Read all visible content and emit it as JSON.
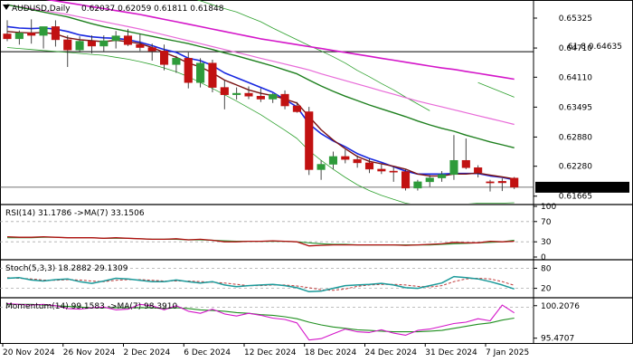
{
  "header": {
    "symbol_text": "AUDUSD,Daily",
    "ohlc_text": "0.62037 0.62059 0.61811 0.61848"
  },
  "colors": {
    "bull": "#2e9b3a",
    "bear": "#c11111",
    "blue_ma": "#1727e0",
    "red_ma": "#7a1212",
    "green_ma": "#1d7f1d",
    "magenta_ma": "#d416c9",
    "pink_ma": "#e86ad8",
    "band": "#2ca02c",
    "rsi_red": "#b01010",
    "rsi_green": "#2e9b3a",
    "stoch_teal": "#1b9a9a",
    "stoch_dash": "#c03a3a",
    "mom_green": "#1f8f1f",
    "mom_magenta": "#d416c9"
  },
  "chart_data": [
    {
      "type": "candlestick",
      "name": "AUDUSD,Daily",
      "x_labels": [
        "20 Nov 2024",
        "26 Nov 2024",
        "2 Dec 2024",
        "6 Dec 2024",
        "12 Dec 2024",
        "18 Dec 2024",
        "24 Dec 2024",
        "31 Dec 2024",
        "7 Jan 2025"
      ],
      "x_label_candle_index": [
        0,
        5,
        10,
        15,
        20,
        25,
        30,
        35,
        40
      ],
      "y_ticks": [
        0.65325,
        0.6471,
        0.6411,
        0.63495,
        0.6288,
        0.6228,
        0.61665
      ],
      "ylim": [
        0.6153,
        0.6566
      ],
      "last_price_label": "0.61848",
      "last_price": 0.61848,
      "fib_level": {
        "label": "61.8 0.64635",
        "value": 0.64635
      },
      "candles": [
        {
          "o": 0.65,
          "h": 0.6528,
          "l": 0.6485,
          "c": 0.649
        },
        {
          "o": 0.649,
          "h": 0.6507,
          "l": 0.6478,
          "c": 0.6502
        },
        {
          "o": 0.6502,
          "h": 0.653,
          "l": 0.648,
          "c": 0.6497
        },
        {
          "o": 0.6497,
          "h": 0.6513,
          "l": 0.647,
          "c": 0.6515
        },
        {
          "o": 0.6515,
          "h": 0.6528,
          "l": 0.6474,
          "c": 0.6488
        },
        {
          "o": 0.6488,
          "h": 0.6497,
          "l": 0.6432,
          "c": 0.6467
        },
        {
          "o": 0.6467,
          "h": 0.6495,
          "l": 0.6462,
          "c": 0.6485
        },
        {
          "o": 0.6485,
          "h": 0.6497,
          "l": 0.646,
          "c": 0.6475
        },
        {
          "o": 0.6475,
          "h": 0.6497,
          "l": 0.6464,
          "c": 0.6486
        },
        {
          "o": 0.6486,
          "h": 0.6506,
          "l": 0.647,
          "c": 0.6496
        },
        {
          "o": 0.6496,
          "h": 0.651,
          "l": 0.6475,
          "c": 0.6478
        },
        {
          "o": 0.6478,
          "h": 0.65,
          "l": 0.6465,
          "c": 0.6472
        },
        {
          "o": 0.6472,
          "h": 0.648,
          "l": 0.6445,
          "c": 0.6465
        },
        {
          "o": 0.6465,
          "h": 0.6478,
          "l": 0.6425,
          "c": 0.6437
        },
        {
          "o": 0.6437,
          "h": 0.6455,
          "l": 0.642,
          "c": 0.645
        },
        {
          "o": 0.645,
          "h": 0.6462,
          "l": 0.6388,
          "c": 0.64
        },
        {
          "o": 0.64,
          "h": 0.645,
          "l": 0.639,
          "c": 0.644
        },
        {
          "o": 0.644,
          "h": 0.6447,
          "l": 0.638,
          "c": 0.639
        },
        {
          "o": 0.639,
          "h": 0.6405,
          "l": 0.6345,
          "c": 0.6375
        },
        {
          "o": 0.6375,
          "h": 0.639,
          "l": 0.6365,
          "c": 0.6378
        },
        {
          "o": 0.6378,
          "h": 0.6392,
          "l": 0.6366,
          "c": 0.6372
        },
        {
          "o": 0.6372,
          "h": 0.6388,
          "l": 0.636,
          "c": 0.6366
        },
        {
          "o": 0.6366,
          "h": 0.6378,
          "l": 0.6358,
          "c": 0.6376
        },
        {
          "o": 0.6376,
          "h": 0.6384,
          "l": 0.6345,
          "c": 0.6352
        },
        {
          "o": 0.6352,
          "h": 0.636,
          "l": 0.6338,
          "c": 0.634
        },
        {
          "o": 0.634,
          "h": 0.635,
          "l": 0.621,
          "c": 0.6221
        },
        {
          "o": 0.6221,
          "h": 0.624,
          "l": 0.62,
          "c": 0.6232
        },
        {
          "o": 0.6232,
          "h": 0.6258,
          "l": 0.6222,
          "c": 0.6248
        },
        {
          "o": 0.6248,
          "h": 0.6262,
          "l": 0.6234,
          "c": 0.6242
        },
        {
          "o": 0.6242,
          "h": 0.625,
          "l": 0.6225,
          "c": 0.6235
        },
        {
          "o": 0.6235,
          "h": 0.6244,
          "l": 0.6214,
          "c": 0.6222
        },
        {
          "o": 0.6222,
          "h": 0.6232,
          "l": 0.6212,
          "c": 0.6218
        },
        {
          "o": 0.6218,
          "h": 0.6226,
          "l": 0.6196,
          "c": 0.6217
        },
        {
          "o": 0.6217,
          "h": 0.6222,
          "l": 0.6178,
          "c": 0.6183
        },
        {
          "o": 0.6183,
          "h": 0.62,
          "l": 0.6178,
          "c": 0.6196
        },
        {
          "o": 0.6196,
          "h": 0.621,
          "l": 0.6186,
          "c": 0.6204
        },
        {
          "o": 0.6204,
          "h": 0.6218,
          "l": 0.6196,
          "c": 0.6211
        },
        {
          "o": 0.6211,
          "h": 0.6292,
          "l": 0.62,
          "c": 0.624
        },
        {
          "o": 0.624,
          "h": 0.6285,
          "l": 0.6222,
          "c": 0.6225
        },
        {
          "o": 0.6225,
          "h": 0.623,
          "l": 0.6205,
          "c": 0.6215
        },
        {
          "o": 0.6196,
          "h": 0.62,
          "l": 0.6176,
          "c": 0.6195
        },
        {
          "o": 0.6197,
          "h": 0.6203,
          "l": 0.6177,
          "c": 0.6194
        },
        {
          "o": 0.62037,
          "h": 0.62059,
          "l": 0.61811,
          "c": 0.61848
        }
      ],
      "overlays": {
        "blue_ma": [
          0.6515,
          0.6512,
          0.6511,
          0.6512,
          0.651,
          0.6505,
          0.6498,
          0.6494,
          0.6492,
          0.6491,
          0.6488,
          0.6483,
          0.6476,
          0.6468,
          0.6462,
          0.645,
          0.6445,
          0.6435,
          0.642,
          0.641,
          0.64,
          0.639,
          0.638,
          0.6365,
          0.635,
          0.6315,
          0.6295,
          0.628,
          0.6268,
          0.6254,
          0.6244,
          0.6236,
          0.6227,
          0.6218,
          0.6212,
          0.6212,
          0.6212,
          0.6213,
          0.6213,
          0.6213,
          0.6208,
          0.6205,
          0.62
        ],
        "red_ma": [
          0.6505,
          0.6503,
          0.6502,
          0.6503,
          0.65,
          0.6492,
          0.6488,
          0.6486,
          0.6484,
          0.6487,
          0.6484,
          0.648,
          0.6472,
          0.6462,
          0.6452,
          0.644,
          0.6432,
          0.642,
          0.6405,
          0.6395,
          0.6385,
          0.6378,
          0.6373,
          0.6366,
          0.6358,
          0.633,
          0.6303,
          0.6282,
          0.6264,
          0.6248,
          0.6238,
          0.6233,
          0.6228,
          0.6222,
          0.6212,
          0.6208,
          0.6208,
          0.6212,
          0.6212,
          0.6214,
          0.621,
          0.6206,
          0.6202
        ],
        "green_ma": [
          0.656,
          0.6555,
          0.655,
          0.6545,
          0.654,
          0.6535,
          0.6528,
          0.6521,
          0.6515,
          0.651,
          0.6505,
          0.65,
          0.6495,
          0.649,
          0.6485,
          0.648,
          0.6474,
          0.6468,
          0.6461,
          0.6455,
          0.6448,
          0.6441,
          0.6434,
          0.6426,
          0.6418,
          0.6405,
          0.6393,
          0.6382,
          0.6372,
          0.6363,
          0.6354,
          0.6346,
          0.6338,
          0.633,
          0.6321,
          0.6313,
          0.6306,
          0.63,
          0.6292,
          0.6285,
          0.6278,
          0.6272,
          0.6266
        ],
        "magenta_ma": [
          0.658,
          0.6578,
          0.6575,
          0.6572,
          0.6568,
          0.6564,
          0.656,
          0.6556,
          0.6552,
          0.6548,
          0.6544,
          0.654,
          0.6535,
          0.653,
          0.6525,
          0.652,
          0.6515,
          0.651,
          0.6505,
          0.65,
          0.6495,
          0.649,
          0.6486,
          0.6482,
          0.6478,
          0.6474,
          0.647,
          0.6466,
          0.6462,
          0.6458,
          0.6454,
          0.645,
          0.6446,
          0.6442,
          0.6438,
          0.6434,
          0.643,
          0.6427,
          0.6423,
          0.6419,
          0.6415,
          0.6411,
          0.6407
        ],
        "pink_ma": [
          0.656,
          0.6556,
          0.6552,
          0.6548,
          0.6544,
          0.654,
          0.6535,
          0.653,
          0.6525,
          0.652,
          0.6515,
          0.651,
          0.6504,
          0.6498,
          0.6492,
          0.6486,
          0.648,
          0.6474,
          0.6468,
          0.6462,
          0.6456,
          0.645,
          0.6444,
          0.6438,
          0.6432,
          0.6426,
          0.6418,
          0.6411,
          0.6404,
          0.6397,
          0.639,
          0.6383,
          0.6376,
          0.6369,
          0.6362,
          0.6356,
          0.635,
          0.6344,
          0.6338,
          0.6332,
          0.6326,
          0.632,
          0.6314
        ],
        "band_upper": [
          null,
          null,
          null,
          null,
          null,
          null,
          null,
          null,
          null,
          null,
          null,
          null,
          0.66,
          0.6592,
          0.6584,
          0.6576,
          0.6568,
          0.656,
          0.6552,
          0.6545,
          0.6535,
          0.6525,
          0.6512,
          0.65,
          0.6488,
          0.6476,
          0.6465,
          0.6453,
          0.644,
          0.6425,
          0.6412,
          0.6398,
          0.6385,
          0.637,
          0.6356,
          0.6342,
          null,
          null,
          null,
          0.64,
          0.639,
          0.638,
          0.637
        ],
        "band_lower": [
          0.6472,
          0.647,
          0.6468,
          0.6466,
          0.6464,
          0.6462,
          0.646,
          0.6458,
          0.6456,
          0.6452,
          0.6448,
          0.6443,
          0.6437,
          0.643,
          0.6422,
          0.6412,
          0.64,
          0.6388,
          0.6375,
          0.6362,
          0.6348,
          0.6334,
          0.6318,
          0.6302,
          0.6285,
          0.626,
          0.624,
          0.6222,
          0.6205,
          0.619,
          0.6178,
          0.6168,
          0.616,
          0.6152,
          0.6148,
          0.6146,
          0.6146,
          0.6148,
          0.615,
          0.6152,
          0.6152,
          0.6152,
          0.6153
        ]
      }
    },
    {
      "type": "line",
      "name": "RSI(14) 31.1786 ->MA(7) 33.1506",
      "label_text": "RSI(14) 31.1786  ->MA(7) 33.1506",
      "y_ticks": [
        100,
        70,
        30,
        0
      ],
      "ylim": [
        0,
        100
      ],
      "series": [
        {
          "values": [
            40,
            39,
            39,
            40,
            39,
            38,
            38,
            38,
            37,
            38,
            37,
            36,
            35,
            35,
            36,
            34,
            35,
            33,
            30,
            30,
            31,
            31,
            32,
            31,
            30,
            22,
            23,
            24,
            24,
            24,
            24,
            24,
            24,
            23,
            24,
            25,
            26,
            29,
            28,
            28,
            31,
            30,
            31
          ]
        },
        {
          "values": [
            38,
            38,
            38,
            39,
            39,
            38,
            38,
            38,
            37,
            37,
            37,
            36,
            35,
            35,
            35,
            34,
            34,
            33,
            32,
            31,
            31,
            31,
            31,
            31,
            30,
            28,
            26,
            25,
            25,
            24,
            24,
            24,
            24,
            24,
            24,
            24,
            25,
            26,
            27,
            28,
            29,
            30,
            33
          ]
        }
      ]
    },
    {
      "type": "line",
      "name": "Stoch(5,3,3) 18.2882 29.1309",
      "label_text": "Stoch(5,3,3) 18.2882 29.1309",
      "y_ticks": [
        80,
        20
      ],
      "ylim": [
        0,
        100
      ],
      "series": [
        {
          "values": [
            50,
            52,
            45,
            42,
            46,
            48,
            40,
            35,
            42,
            50,
            48,
            44,
            40,
            40,
            45,
            40,
            36,
            40,
            30,
            25,
            28,
            30,
            32,
            28,
            22,
            10,
            12,
            20,
            28,
            30,
            32,
            35,
            30,
            22,
            20,
            28,
            36,
            55,
            52,
            48,
            40,
            30,
            18
          ]
        },
        {
          "values": [
            52,
            50,
            48,
            45,
            44,
            46,
            45,
            42,
            40,
            44,
            46,
            46,
            44,
            42,
            42,
            42,
            40,
            38,
            36,
            32,
            28,
            28,
            30,
            30,
            27,
            22,
            16,
            14,
            18,
            26,
            30,
            32,
            32,
            30,
            26,
            24,
            28,
            40,
            48,
            50,
            48,
            40,
            29
          ]
        }
      ]
    },
    {
      "type": "line",
      "name": "Momentum(14) 99.1583 ->MA(7) 98.3910",
      "label_text": "Momentum(14) 99.1583  ->MA(7) 98.3910",
      "y_ticks": [
        100.2076,
        95.4707
      ],
      "ylim": [
        94.9,
        101.1
      ],
      "series": [
        {
          "values": [
            100.5,
            100.4,
            100.3,
            100.4,
            100.2,
            99.8,
            99.7,
            99.9,
            100.0,
            99.6,
            99.7,
            100.4,
            100.2,
            99.6,
            100.2,
            99.4,
            99.1,
            99.7,
            99.0,
            98.7,
            99.1,
            98.8,
            98.4,
            98.2,
            97.7,
            95.2,
            95.4,
            96.1,
            96.8,
            96.4,
            96.3,
            96.7,
            96.2,
            95.9,
            96.6,
            96.8,
            97.2,
            97.6,
            97.8,
            98.3,
            98.0,
            100.3,
            99.16
          ]
        },
        {
          "values": [
            100.4,
            100.4,
            100.4,
            100.3,
            100.2,
            100.1,
            100.0,
            99.9,
            99.9,
            99.9,
            99.9,
            99.9,
            99.9,
            99.8,
            99.9,
            99.8,
            99.6,
            99.5,
            99.4,
            99.2,
            99.1,
            98.9,
            98.8,
            98.6,
            98.3,
            97.8,
            97.4,
            97.1,
            96.9,
            96.7,
            96.6,
            96.5,
            96.4,
            96.4,
            96.4,
            96.5,
            96.6,
            96.9,
            97.2,
            97.5,
            97.7,
            98.1,
            98.39
          ]
        }
      ]
    }
  ]
}
